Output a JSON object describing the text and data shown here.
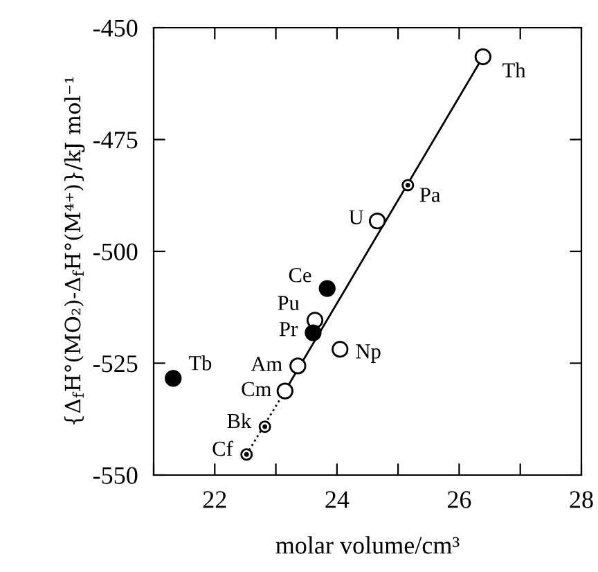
{
  "chart_data": {
    "type": "scatter",
    "xlabel": "molar volume/cm³",
    "ylabel": "{Δ$_{f}$H°(MO₂)-Δ$_{f}$H°(M⁴⁺)}/kJ mol⁻¹",
    "xlim": [
      21,
      28
    ],
    "ylim": [
      -550,
      -450
    ],
    "xticks": [
      {
        "value": 21,
        "label": null
      },
      22,
      {
        "value": 23,
        "label": null
      },
      24,
      {
        "value": 25,
        "label": null
      },
      26,
      {
        "value": 27,
        "label": null
      },
      28
    ],
    "yticks": [
      -550,
      -525,
      -500,
      -475,
      -450
    ],
    "grid": false,
    "legend": false,
    "marker": "circle",
    "series": [
      {
        "color": "#000000",
        "x": [
          26.39,
          24.66,
          23.64,
          24.05,
          23.36,
          23.15
        ],
        "values": [
          -456.5,
          -493.2,
          -515.4,
          -521.9,
          -525.6,
          -531.2
        ]
      },
      {
        "color": "#000000",
        "x": [
          23.84,
          23.61,
          21.32
        ],
        "values": [
          -508.3,
          -518.2,
          -528.4
        ]
      },
      {
        "color": "#000000",
        "x": [
          25.16,
          22.82,
          22.52
        ],
        "values": [
          -485.2,
          -539.2,
          -545.4
        ]
      },
      {
        "type": "line",
        "color": "#000000",
        "line_style": "solid",
        "marker": "none",
        "x": [
          23.15,
          26.39
        ],
        "values": [
          -531.2,
          -456.5
        ]
      },
      {
        "type": "line",
        "color": "#000000",
        "line_style": "dotted",
        "marker": "none",
        "x": [
          22.52,
          23.15
        ],
        "values": [
          -545.4,
          -531.2
        ]
      }
    ],
    "annotations": [
      {
        "text": "Th",
        "x": 26.39,
        "y": -456.5
      },
      {
        "text": "Pa",
        "x": 25.16,
        "y": -485.2
      },
      {
        "text": "U",
        "x": 24.66,
        "y": -493.2
      },
      {
        "text": "Ce",
        "x": 23.84,
        "y": -508.3
      },
      {
        "text": "Pu",
        "x": 23.64,
        "y": -515.4
      },
      {
        "text": "Pr",
        "x": 23.61,
        "y": -518.2
      },
      {
        "text": "Np",
        "x": 24.05,
        "y": -521.9
      },
      {
        "text": "Am",
        "x": 23.36,
        "y": -525.6
      },
      {
        "text": "Cm",
        "x": 23.15,
        "y": -531.2
      },
      {
        "text": "Bk",
        "x": 22.82,
        "y": -539.2
      },
      {
        "text": "Cf",
        "x": 22.52,
        "y": -545.4
      },
      {
        "text": "Tb",
        "x": 21.32,
        "y": -528.4
      }
    ]
  }
}
